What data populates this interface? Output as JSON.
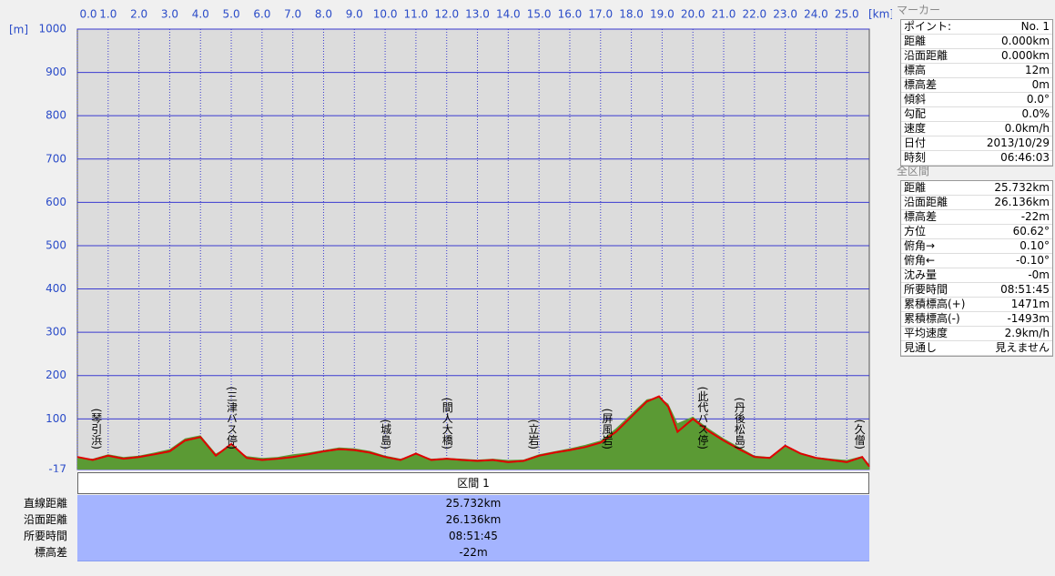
{
  "chart_data": {
    "type": "area-line",
    "x_label": "[km]",
    "y_label": "[m]",
    "xlim": [
      0,
      25.732
    ],
    "ylim": [
      -17,
      1000
    ],
    "xticks": [
      {
        "value": 0,
        "label": "0.0"
      },
      {
        "value": 1,
        "label": "1.0"
      },
      {
        "value": 2,
        "label": "2.0"
      },
      {
        "value": 3,
        "label": "3.0"
      },
      {
        "value": 4,
        "label": "4.0"
      },
      {
        "value": 5,
        "label": "5.0"
      },
      {
        "value": 6,
        "label": "6.0"
      },
      {
        "value": 7,
        "label": "7.0"
      },
      {
        "value": 8,
        "label": "8.0"
      },
      {
        "value": 9,
        "label": "9.0"
      },
      {
        "value": 10,
        "label": "10.0"
      },
      {
        "value": 11,
        "label": "11.0"
      },
      {
        "value": 12,
        "label": "12.0"
      },
      {
        "value": 13,
        "label": "13.0"
      },
      {
        "value": 14,
        "label": "14.0"
      },
      {
        "value": 15,
        "label": "15.0"
      },
      {
        "value": 16,
        "label": "16.0"
      },
      {
        "value": 17,
        "label": "17.0"
      },
      {
        "value": 18,
        "label": "18.0"
      },
      {
        "value": 19,
        "label": "19.0"
      },
      {
        "value": 20,
        "label": "20.0"
      },
      {
        "value": 21,
        "label": "21.0"
      },
      {
        "value": 22,
        "label": "22.0"
      },
      {
        "value": 23,
        "label": "23.0"
      },
      {
        "value": 24,
        "label": "24.0"
      },
      {
        "value": 25,
        "label": "25.0"
      }
    ],
    "yticks": [
      -17,
      100,
      200,
      300,
      400,
      500,
      600,
      700,
      800,
      900,
      1000
    ],
    "grid": true,
    "x": [
      0,
      0.5,
      1,
      1.5,
      2,
      2.5,
      3,
      3.5,
      4,
      4.5,
      5,
      5.5,
      6,
      6.5,
      7,
      7.5,
      8,
      8.5,
      9,
      9.5,
      10,
      10.5,
      11,
      11.5,
      12,
      12.5,
      13,
      13.5,
      14,
      14.5,
      15,
      15.5,
      16,
      16.5,
      17,
      17.5,
      18,
      18.5,
      18.9,
      19.2,
      19.5,
      20,
      20.5,
      21,
      21.5,
      22,
      22.5,
      23,
      23.5,
      24,
      24.5,
      25,
      25.5,
      25.732
    ],
    "series": [
      {
        "color": "#5b9a34",
        "values": [
          10,
          8,
          18,
          12,
          15,
          22,
          30,
          55,
          62,
          20,
          38,
          14,
          10,
          12,
          18,
          22,
          28,
          34,
          32,
          26,
          15,
          8,
          18,
          8,
          10,
          8,
          6,
          8,
          5,
          6,
          18,
          25,
          32,
          40,
          50,
          78,
          112,
          145,
          150,
          135,
          90,
          105,
          78,
          55,
          35,
          15,
          12,
          35,
          22,
          12,
          8,
          5,
          14,
          -5
        ]
      },
      {
        "color": "#e00000",
        "values": [
          12,
          5,
          15,
          8,
          12,
          18,
          25,
          50,
          58,
          15,
          42,
          10,
          5,
          8,
          12,
          18,
          25,
          30,
          28,
          22,
          12,
          5,
          20,
          5,
          8,
          5,
          3,
          5,
          0,
          3,
          15,
          22,
          28,
          35,
          45,
          70,
          105,
          140,
          152,
          128,
          70,
          100,
          72,
          50,
          30,
          12,
          10,
          38,
          20,
          10,
          5,
          0,
          12,
          -10
        ]
      }
    ],
    "annotations": [
      {
        "x": 0.6,
        "label": "(琴引浜)"
      },
      {
        "x": 5.0,
        "label": "(三津バス停)"
      },
      {
        "x": 10.0,
        "label": "(城島)"
      },
      {
        "x": 12.0,
        "label": "(間人大橋)"
      },
      {
        "x": 14.8,
        "label": "(立岩)"
      },
      {
        "x": 17.2,
        "label": "(屏風岩)"
      },
      {
        "x": 20.3,
        "label": "(此代バス停)"
      },
      {
        "x": 21.5,
        "label": "(丹後松島)"
      },
      {
        "x": 25.4,
        "label": "(久僧)"
      }
    ]
  },
  "section_table": {
    "header": "区間 1",
    "rows": [
      [
        "直線距離",
        "25.732km"
      ],
      [
        "沿面距離",
        "26.136km"
      ],
      [
        "所要時間",
        "08:51:45"
      ],
      [
        "標高差",
        "-22m"
      ]
    ]
  },
  "marker_panel": {
    "title": "マーカー",
    "rows": [
      [
        "ポイント:",
        "No. 1"
      ],
      [
        "距離",
        "0.000km"
      ],
      [
        "沿面距離",
        "0.000km"
      ],
      [
        "標高",
        "12m"
      ],
      [
        "標高差",
        "0m"
      ],
      [
        "傾斜",
        "0.0°"
      ],
      [
        "勾配",
        "0.0%"
      ],
      [
        "速度",
        "0.0km/h"
      ],
      [
        "日付",
        "2013/10/29"
      ],
      [
        "時刻",
        "06:46:03"
      ]
    ]
  },
  "total_panel": {
    "title": "全区間",
    "rows": [
      [
        "距離",
        "25.732km"
      ],
      [
        "沿面距離",
        "26.136km"
      ],
      [
        "標高差",
        "-22m"
      ],
      [
        "方位",
        "60.62°"
      ],
      [
        "俯角→",
        "0.10°"
      ],
      [
        "俯角←",
        "-0.10°"
      ],
      [
        "沈み量",
        "-0m"
      ],
      [
        "所要時間",
        "08:51:45"
      ],
      [
        "累積標高(+)",
        "1471m"
      ],
      [
        "累積標高(-)",
        "-1493m"
      ],
      [
        "平均速度",
        "2.9km/h"
      ],
      [
        "見通し",
        "見えません"
      ]
    ]
  }
}
